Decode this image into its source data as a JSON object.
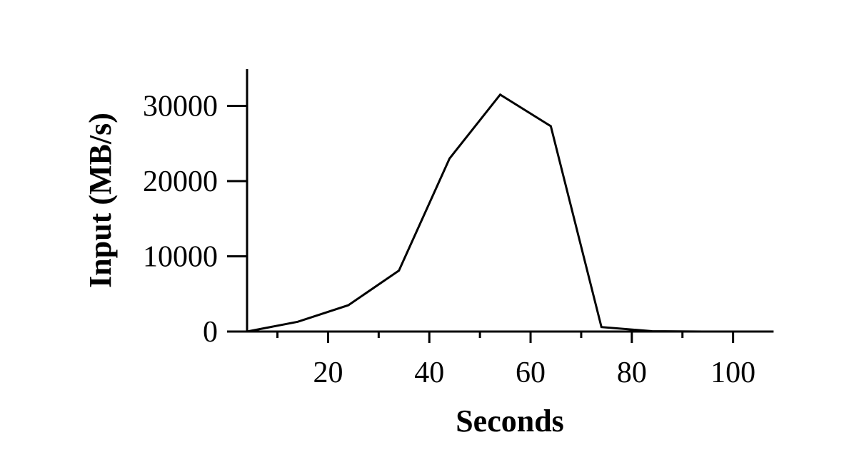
{
  "chart_data": {
    "type": "line",
    "title": "",
    "xlabel": "Seconds",
    "ylabel": "Input (MB/s)",
    "xlim": [
      0,
      108
    ],
    "ylim": [
      0,
      35000
    ],
    "x_ticks_major": [
      20,
      40,
      60,
      80,
      100
    ],
    "x_ticks_minor": [
      10,
      30,
      50,
      70,
      90
    ],
    "x_tick_labels": [
      "20",
      "40",
      "60",
      "80",
      "100"
    ],
    "y_ticks": [
      0,
      10000,
      20000,
      30000
    ],
    "y_tick_labels": [
      "0",
      "10000",
      "20000",
      "30000"
    ],
    "grid": false,
    "legend": "none",
    "series": [
      {
        "x": [
          4,
          14,
          24,
          34,
          44,
          54,
          64,
          74,
          84,
          94,
          104,
          108
        ],
        "values": [
          0,
          1300,
          3500,
          8100,
          23000,
          31500,
          27300,
          600,
          50,
          0,
          0,
          0
        ]
      }
    ]
  }
}
